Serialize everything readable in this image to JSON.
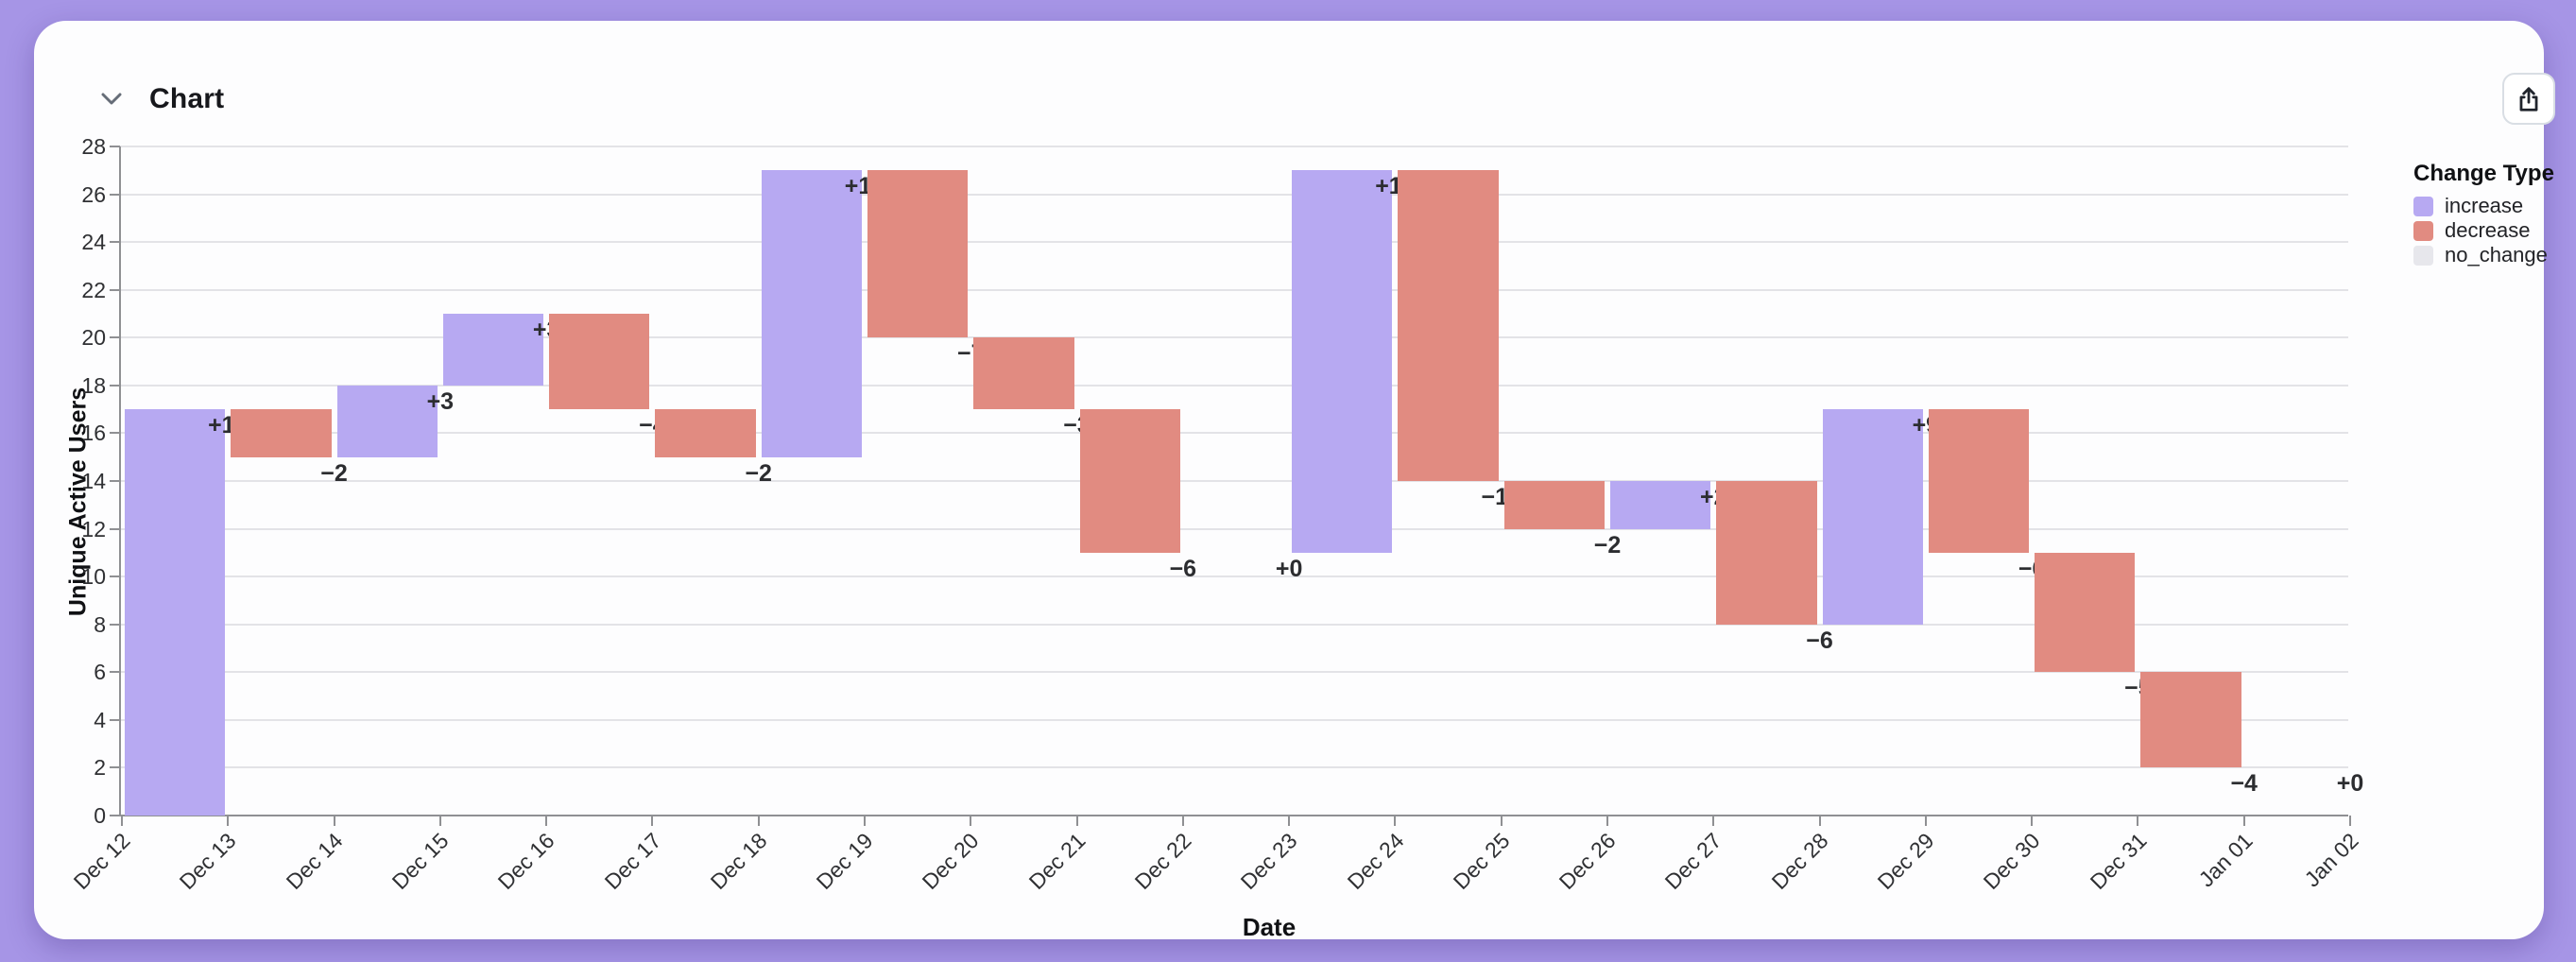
{
  "header": {
    "title": "Chart"
  },
  "share_button": {
    "icon": "share-up"
  },
  "legend": {
    "title": "Change Type",
    "items": [
      {
        "label": "increase",
        "color": "#b7a9f2"
      },
      {
        "label": "decrease",
        "color": "#e18b81"
      },
      {
        "label": "no_change",
        "color": "#e7e7ec"
      }
    ]
  },
  "chart_data": {
    "type": "waterfall",
    "xlabel": "Date",
    "ylabel": "Unique Active Users",
    "x_ticks": [
      "Dec 12",
      "Dec 13",
      "Dec 14",
      "Dec 15",
      "Dec 16",
      "Dec 17",
      "Dec 18",
      "Dec 19",
      "Dec 20",
      "Dec 21",
      "Dec 22",
      "Dec 23",
      "Dec 24",
      "Dec 25",
      "Dec 26",
      "Dec 27",
      "Dec 28",
      "Dec 29",
      "Dec 30",
      "Dec 31",
      "Jan 01",
      "Jan 02"
    ],
    "y_ticks": [
      0,
      2,
      4,
      6,
      8,
      10,
      12,
      14,
      16,
      18,
      20,
      22,
      24,
      26,
      28
    ],
    "ylim": [
      0,
      28
    ],
    "grid": true,
    "legend_position": "right",
    "colors": {
      "increase": "#b7a9f2",
      "decrease": "#e18b81",
      "no_change": "#e7e7ec"
    },
    "bars": [
      {
        "from": "Dec 12",
        "to": "Dec 13",
        "change": 17,
        "label": "+17",
        "type": "increase",
        "start": 0,
        "end": 17
      },
      {
        "from": "Dec 13",
        "to": "Dec 14",
        "change": -2,
        "label": "−2",
        "type": "decrease",
        "start": 17,
        "end": 15
      },
      {
        "from": "Dec 14",
        "to": "Dec 15",
        "change": 3,
        "label": "+3",
        "type": "increase",
        "start": 15,
        "end": 18
      },
      {
        "from": "Dec 15",
        "to": "Dec 16",
        "change": 3,
        "label": "+3",
        "type": "increase",
        "start": 18,
        "end": 21
      },
      {
        "from": "Dec 16",
        "to": "Dec 17",
        "change": -4,
        "label": "−4",
        "type": "decrease",
        "start": 21,
        "end": 17
      },
      {
        "from": "Dec 17",
        "to": "Dec 18",
        "change": -2,
        "label": "−2",
        "type": "decrease",
        "start": 17,
        "end": 15
      },
      {
        "from": "Dec 18",
        "to": "Dec 19",
        "change": 12,
        "label": "+12",
        "type": "increase",
        "start": 15,
        "end": 27
      },
      {
        "from": "Dec 19",
        "to": "Dec 20",
        "change": -7,
        "label": "−7",
        "type": "decrease",
        "start": 27,
        "end": 20
      },
      {
        "from": "Dec 20",
        "to": "Dec 21",
        "change": -3,
        "label": "−3",
        "type": "decrease",
        "start": 20,
        "end": 17
      },
      {
        "from": "Dec 21",
        "to": "Dec 22",
        "change": -6,
        "label": "−6",
        "type": "decrease",
        "start": 17,
        "end": 11
      },
      {
        "from": "Dec 22",
        "to": "Dec 23",
        "change": 0,
        "label": "+0",
        "type": "no_change",
        "start": 11,
        "end": 11
      },
      {
        "from": "Dec 23",
        "to": "Dec 24",
        "change": 16,
        "label": "+16",
        "type": "increase",
        "start": 11,
        "end": 27
      },
      {
        "from": "Dec 24",
        "to": "Dec 25",
        "change": -13,
        "label": "−13",
        "type": "decrease",
        "start": 27,
        "end": 14
      },
      {
        "from": "Dec 25",
        "to": "Dec 26",
        "change": -2,
        "label": "−2",
        "type": "decrease",
        "start": 14,
        "end": 12
      },
      {
        "from": "Dec 26",
        "to": "Dec 27",
        "change": 2,
        "label": "+2",
        "type": "increase",
        "start": 12,
        "end": 14
      },
      {
        "from": "Dec 27",
        "to": "Dec 28",
        "change": -6,
        "label": "−6",
        "type": "decrease",
        "start": 14,
        "end": 8
      },
      {
        "from": "Dec 28",
        "to": "Dec 29",
        "change": 9,
        "label": "+9",
        "type": "increase",
        "start": 8,
        "end": 17
      },
      {
        "from": "Dec 29",
        "to": "Dec 30",
        "change": -6,
        "label": "−6",
        "type": "decrease",
        "start": 17,
        "end": 11
      },
      {
        "from": "Dec 30",
        "to": "Dec 31",
        "change": -5,
        "label": "−5",
        "type": "decrease",
        "start": 11,
        "end": 6
      },
      {
        "from": "Dec 31",
        "to": "Jan 01",
        "change": -4,
        "label": "−4",
        "type": "decrease",
        "start": 6,
        "end": 2
      },
      {
        "from": "Jan 01",
        "to": "Jan 02",
        "change": 0,
        "label": "+0",
        "type": "no_change",
        "start": 2,
        "end": 2
      }
    ]
  }
}
